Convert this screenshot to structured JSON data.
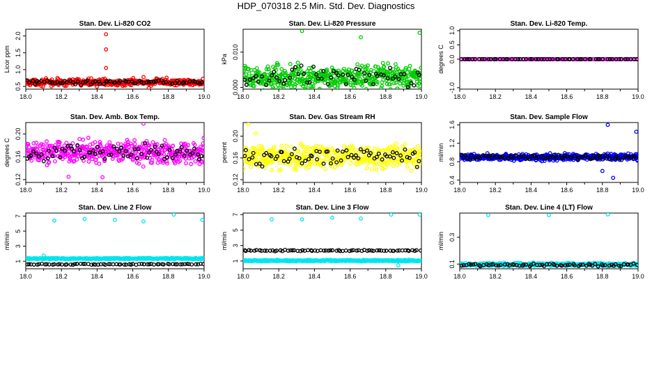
{
  "figure": {
    "title": "HDP_070318  2.5 Min. Std. Dev. Diagnostics"
  },
  "chart_data": [
    {
      "type": "scatter",
      "title": "Stan. Dev. Li-820 CO2",
      "xlabel": "",
      "ylabel": "Licor ppm",
      "xlim": [
        18.0,
        19.0
      ],
      "ylim": [
        0.42,
        2.2
      ],
      "xticks": [
        "18.0",
        "18.2",
        "18.4",
        "18.6",
        "18.8",
        "19.0"
      ],
      "yticks": [
        "0.5",
        "1.0",
        "1.5",
        "2.0"
      ],
      "series": [
        {
          "name": "primary",
          "color": "#ff0000",
          "count": 420,
          "center": 0.62,
          "spread": 0.07,
          "outliers": [
            [
              18.45,
              2.05
            ],
            [
              18.45,
              1.6
            ],
            [
              18.45,
              1.05
            ],
            [
              18.66,
              0.78
            ],
            [
              18.79,
              0.76
            ],
            [
              18.69,
              0.45
            ]
          ]
        },
        {
          "name": "secondary",
          "color": "#000000",
          "count": 70,
          "center": 0.62,
          "spread": 0.05,
          "outliers": []
        }
      ]
    },
    {
      "type": "scatter",
      "title": "Stan. Dev. Li-820 Pressure",
      "xlabel": "",
      "ylabel": "kPa",
      "xlim": [
        18.0,
        19.0
      ],
      "ylim": [
        -0.0005,
        0.0165
      ],
      "xticks": [
        "18.0",
        "18.2",
        "18.4",
        "18.6",
        "18.8",
        "19.0"
      ],
      "yticks": [
        "0.000",
        "0.010"
      ],
      "series": [
        {
          "name": "primary",
          "color": "#00cc00",
          "count": 520,
          "center": 0.0028,
          "spread": 0.0024,
          "outliers": [
            [
              18.33,
              0.016
            ],
            [
              18.66,
              0.0142
            ],
            [
              18.99,
              0.0155
            ]
          ]
        },
        {
          "name": "secondary",
          "color": "#000000",
          "count": 60,
          "center": 0.003,
          "spread": 0.002,
          "outliers": []
        }
      ]
    },
    {
      "type": "scatter",
      "title": "Stan. Dev. Li-820 Temp.",
      "xlabel": "",
      "ylabel": "degrees C",
      "xlim": [
        18.0,
        19.0
      ],
      "ylim": [
        -1.05,
        1.05
      ],
      "xticks": [
        "18.0",
        "18.2",
        "18.4",
        "18.6",
        "18.8",
        "19.0"
      ],
      "yticks": [
        "-1.0",
        "0.0",
        "0.5",
        "1.0"
      ],
      "series": [
        {
          "name": "primary",
          "color": "#ff00ff",
          "count": 120,
          "center": 0.0,
          "spread": 0.0,
          "outliers": []
        },
        {
          "name": "secondary",
          "color": "#000000",
          "count": 60,
          "center": 0.0,
          "spread": 0.0,
          "outliers": []
        }
      ]
    },
    {
      "type": "scatter",
      "title": "Stan. Dev. Amb. Box Temp.",
      "xlabel": "",
      "ylabel": "degrees C",
      "xlim": [
        18.0,
        19.0
      ],
      "ylim": [
        0.115,
        0.22
      ],
      "xticks": [
        "18.0",
        "18.2",
        "18.4",
        "18.6",
        "18.8",
        "19.0"
      ],
      "yticks": [
        "0.12",
        "0.16",
        "0.20"
      ],
      "series": [
        {
          "name": "primary",
          "color": "#ff00ff",
          "count": 480,
          "center": 0.168,
          "spread": 0.014,
          "outliers": [
            [
              18.66,
              0.218
            ],
            [
              18.43,
              0.124
            ],
            [
              18.24,
              0.125
            ]
          ]
        },
        {
          "name": "secondary",
          "color": "#000000",
          "count": 70,
          "center": 0.166,
          "spread": 0.01,
          "outliers": []
        }
      ]
    },
    {
      "type": "scatter",
      "title": "Stan. Dev. Gas Stream RH",
      "xlabel": "",
      "ylabel": "percent",
      "xlim": [
        18.0,
        19.0
      ],
      "ylim": [
        0.115,
        0.225
      ],
      "xticks": [
        "18.0",
        "18.2",
        "18.4",
        "18.6",
        "18.8",
        "19.0"
      ],
      "yticks": [
        "0.12",
        "0.16",
        "0.20"
      ],
      "series": [
        {
          "name": "primary",
          "color": "#ffff00",
          "count": 460,
          "center": 0.163,
          "spread": 0.016,
          "outliers": [
            [
              18.03,
              0.222
            ],
            [
              18.07,
              0.205
            ]
          ]
        },
        {
          "name": "secondary",
          "color": "#000000",
          "count": 70,
          "center": 0.162,
          "spread": 0.012,
          "outliers": []
        }
      ]
    },
    {
      "type": "scatter",
      "title": "Stan. Dev. Sample Flow",
      "xlabel": "",
      "ylabel": "ml/min",
      "xlim": [
        18.0,
        19.0
      ],
      "ylim": [
        0.35,
        1.65
      ],
      "xticks": [
        "18.0",
        "18.2",
        "18.4",
        "18.6",
        "18.8",
        "19.0"
      ],
      "yticks": [
        "0.4",
        "0.8",
        "1.2",
        "1.6"
      ],
      "series": [
        {
          "name": "primary",
          "color": "#0000ff",
          "count": 520,
          "center": 0.9,
          "spread": 0.05,
          "outliers": [
            [
              18.83,
              1.6
            ],
            [
              18.86,
              0.45
            ],
            [
              18.99,
              1.45
            ],
            [
              18.8,
              0.6
            ]
          ]
        },
        {
          "name": "secondary",
          "color": "#000000",
          "count": 80,
          "center": 0.9,
          "spread": 0.04,
          "outliers": []
        }
      ]
    },
    {
      "type": "scatter",
      "title": "Stan. Dev. Line 2 Flow",
      "xlabel": "",
      "ylabel": "ml/min",
      "xlim": [
        18.0,
        19.0
      ],
      "ylim": [
        0.0,
        7.4
      ],
      "xticks": [
        "18.0",
        "18.2",
        "18.4",
        "18.6",
        "18.8",
        "19.0"
      ],
      "yticks": [
        "1",
        "3",
        "5",
        "7"
      ],
      "series": [
        {
          "name": "primary",
          "color": "#00e5ee",
          "count": 380,
          "center": 1.35,
          "spread": 0.06,
          "outliers": [
            [
              18.16,
              6.4
            ],
            [
              18.33,
              6.6
            ],
            [
              18.5,
              6.5
            ],
            [
              18.66,
              6.3
            ],
            [
              18.83,
              7.2
            ],
            [
              18.99,
              6.5
            ],
            [
              18.1,
              1.75
            ]
          ]
        },
        {
          "name": "secondary",
          "color": "#000000",
          "count": 70,
          "center": 0.6,
          "spread": 0.05,
          "outliers": []
        }
      ]
    },
    {
      "type": "scatter",
      "title": "Stan. Dev. Line 3 Flow",
      "xlabel": "",
      "ylabel": "ml/min",
      "xlim": [
        18.0,
        19.0
      ],
      "ylim": [
        0.0,
        7.2
      ],
      "xticks": [
        "18.0",
        "18.2",
        "18.4",
        "18.6",
        "18.8",
        "19.0"
      ],
      "yticks": [
        "1",
        "3",
        "5",
        "7"
      ],
      "series": [
        {
          "name": "primary",
          "color": "#00e5ee",
          "count": 420,
          "center": 1.05,
          "spread": 0.07,
          "outliers": [
            [
              18.16,
              6.4
            ],
            [
              18.33,
              6.4
            ],
            [
              18.5,
              6.6
            ],
            [
              18.66,
              6.5
            ],
            [
              18.83,
              7.0
            ],
            [
              18.99,
              7.0
            ],
            [
              18.87,
              0.45
            ]
          ]
        },
        {
          "name": "secondary",
          "color": "#000000",
          "count": 70,
          "center": 2.35,
          "spread": 0.06,
          "outliers": []
        }
      ]
    },
    {
      "type": "scatter",
      "title": "Stan. Dev. Line 4 (LT) Flow",
      "xlabel": "",
      "ylabel": "ml/min",
      "xlim": [
        18.0,
        19.0
      ],
      "ylim": [
        0.065,
        0.48
      ],
      "xticks": [
        "18.0",
        "18.2",
        "18.4",
        "18.6",
        "18.8",
        "19.0"
      ],
      "yticks": [
        "0.1",
        "0.3"
      ],
      "series": [
        {
          "name": "primary",
          "color": "#00e5ee",
          "count": 420,
          "center": 0.097,
          "spread": 0.008,
          "outliers": [
            [
              18.16,
              0.465
            ],
            [
              18.5,
              0.465
            ],
            [
              18.83,
              0.47
            ]
          ]
        },
        {
          "name": "secondary",
          "color": "#000000",
          "count": 70,
          "center": 0.094,
          "spread": 0.006,
          "outliers": []
        }
      ]
    }
  ]
}
